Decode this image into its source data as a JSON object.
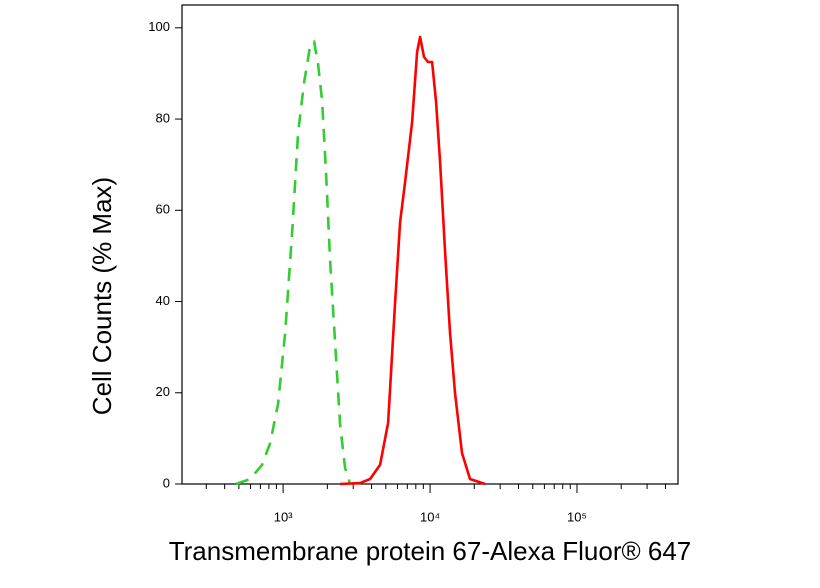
{
  "chart_data": {
    "type": "line",
    "xlabel": "Transmembrane protein 67-Alexa Fluor® 647",
    "ylabel": "Cell Counts (% Max)",
    "xscale": "log",
    "xlim": [
      205,
      487000
    ],
    "ylim": [
      0,
      105
    ],
    "xticks": [
      {
        "value": 1000,
        "label": "10³"
      },
      {
        "value": 10000,
        "label": "10⁴"
      },
      {
        "value": 100000,
        "label": "10⁵"
      }
    ],
    "xminorticks": [
      300,
      400,
      500,
      600,
      700,
      800,
      900,
      2000,
      3000,
      4000,
      5000,
      6000,
      7000,
      8000,
      9000,
      20000,
      30000,
      40000,
      50000,
      60000,
      70000,
      80000,
      90000,
      200000,
      300000,
      400000
    ],
    "yticks": [
      0,
      20,
      40,
      60,
      80,
      100
    ],
    "series": [
      {
        "color": "#33cc33",
        "dashed": true,
        "x": [
          479,
          597,
          719,
          817,
          925,
          1032,
          1151,
          1265,
          1390,
          1527,
          1625,
          1730,
          1842,
          1961,
          2089,
          2259,
          2443,
          2642,
          2857
        ],
        "values": [
          0,
          1.1,
          4.2,
          9,
          17.6,
          33,
          55,
          77,
          88,
          96,
          97,
          92,
          84,
          68,
          49,
          31,
          13,
          3.5,
          0
        ]
      },
      {
        "color": "#ff0000",
        "dashed": false,
        "x": [
          2443,
          3342,
          3908,
          4570,
          5180,
          5780,
          6250,
          6760,
          7550,
          8160,
          8550,
          9100,
          9690,
          10320,
          10990,
          11700,
          12650,
          13680,
          14790,
          16500,
          18700,
          23660
        ],
        "values": [
          0,
          0.2,
          1.1,
          4.2,
          13.4,
          39.8,
          57.4,
          66.2,
          79.3,
          94.7,
          98,
          93.6,
          92.5,
          92.5,
          83.7,
          70.5,
          50.8,
          33.2,
          20,
          6.8,
          1.1,
          0
        ]
      }
    ]
  }
}
